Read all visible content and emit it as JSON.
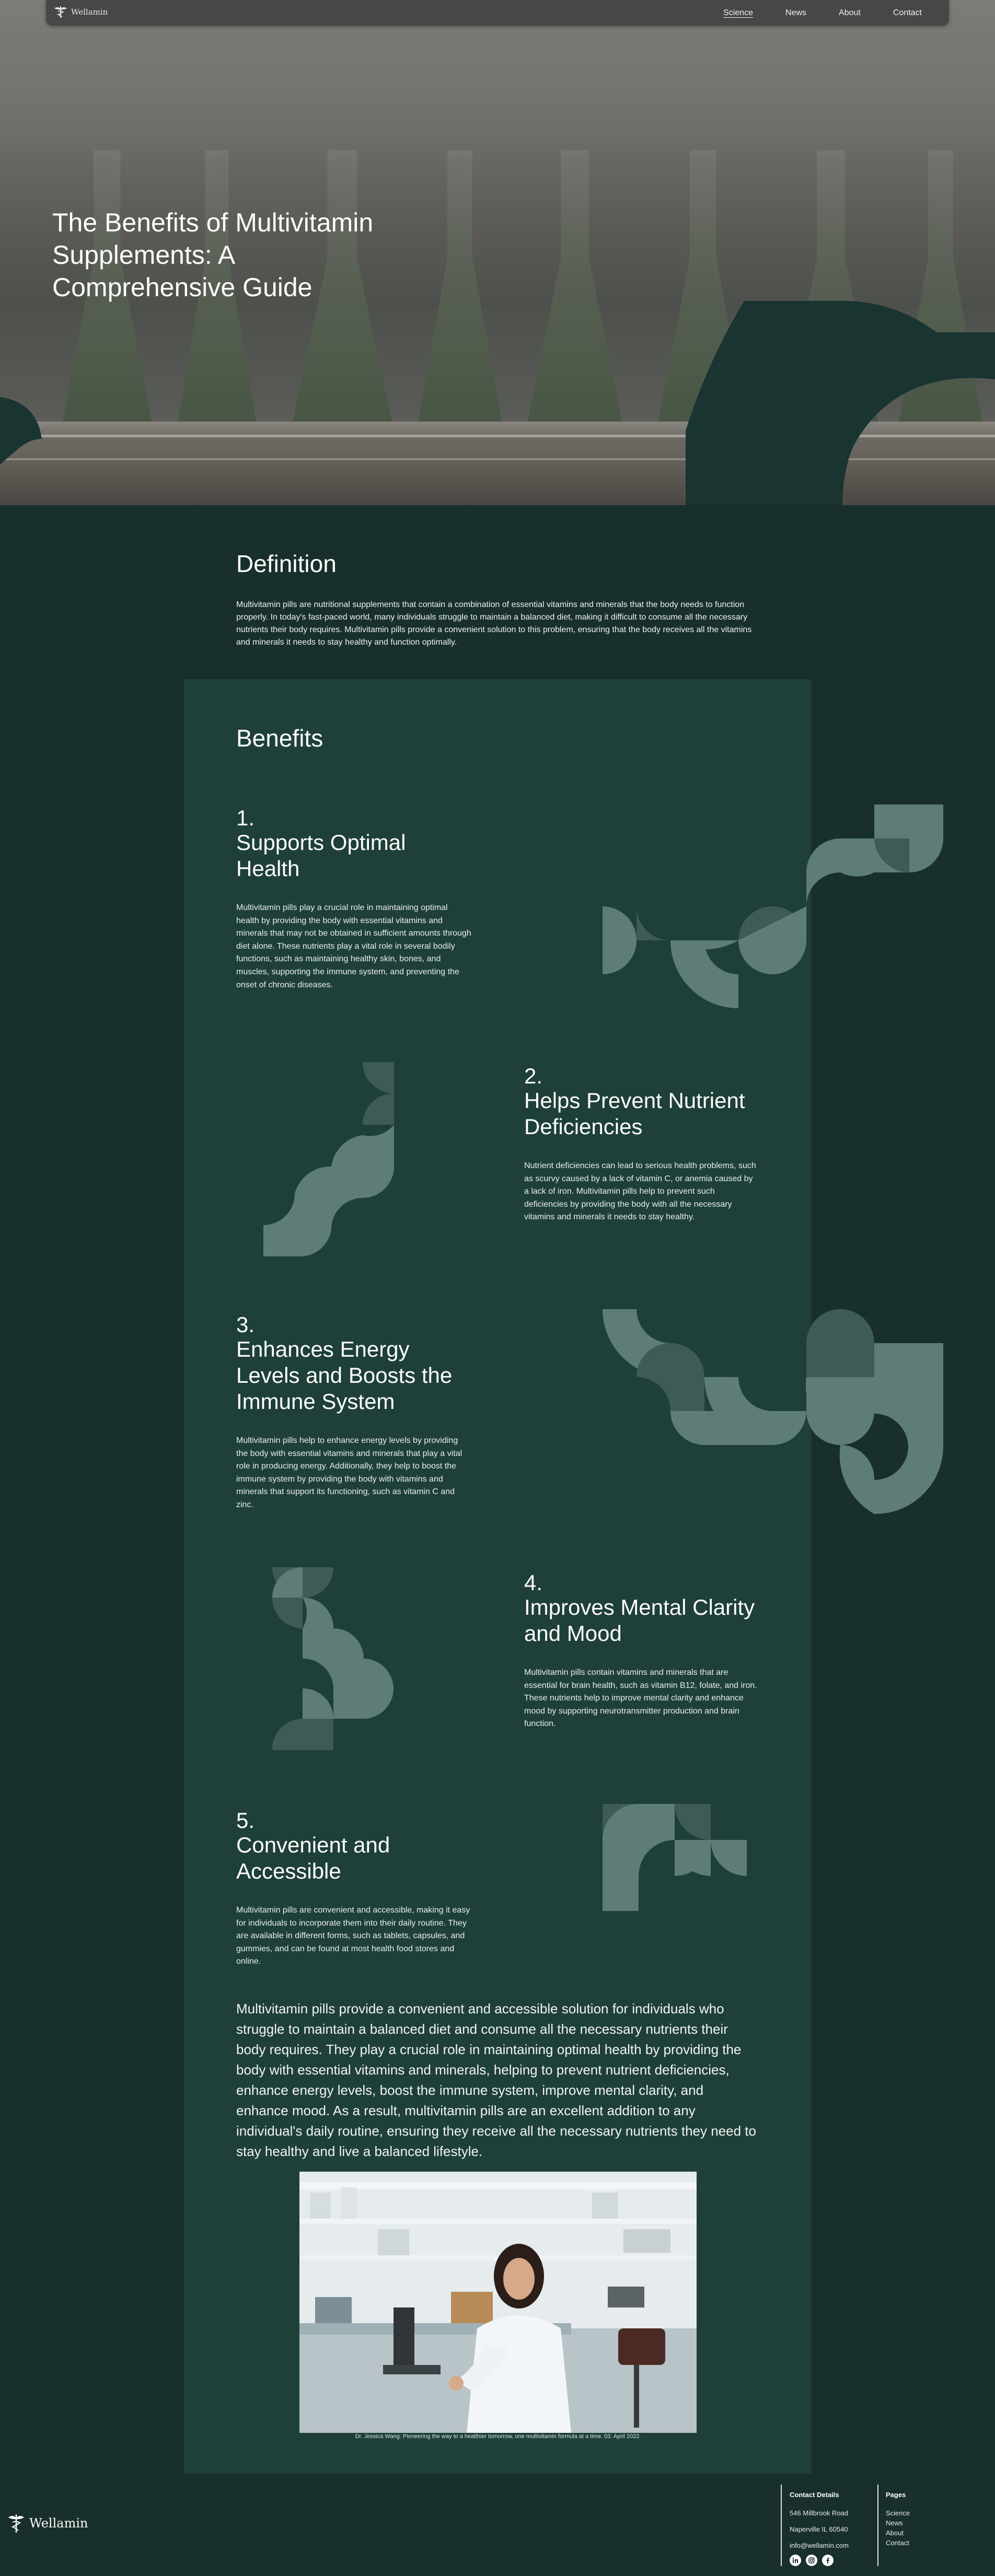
{
  "nav": {
    "brand": "Wellamin",
    "links": [
      "Science",
      "News",
      "About",
      "Contact"
    ],
    "active": "Science"
  },
  "hero": {
    "title": "The Benefits of Multivitamin Supplements: A Comprehensive Guide"
  },
  "definition": {
    "heading": "Definition",
    "body": "Multivitamin pills are nutritional supplements that contain a combination of essential vitamins and minerals that the body needs to function properly. In today's fast-paced world, many individuals struggle to maintain a balanced diet, making it difficult to consume all the necessary nutrients their body requires. Multivitamin pills provide a convenient solution to this problem, ensuring that the body receives all the vitamins and minerals it needs to stay healthy and function optimally."
  },
  "benefits": {
    "heading": "Benefits",
    "items": [
      {
        "number": "1.",
        "title": "Supports Optimal Health",
        "body": "Multivitamin pills play a crucial role in maintaining optimal health by providing the body with essential vitamins and minerals that may not be obtained in sufficient amounts through diet alone. These nutrients play a vital role in several bodily functions, such as maintaining healthy skin, bones, and muscles, supporting the immune system, and preventing the onset of chronic diseases."
      },
      {
        "number": "2.",
        "title": "Helps Prevent Nutrient Deficiencies",
        "body": "Nutrient deficiencies can lead to serious health problems, such as scurvy caused by a lack of vitamin C, or anemia caused by a lack of iron. Multivitamin pills help to prevent such deficiencies by providing the body with all the necessary vitamins and minerals it needs to stay healthy."
      },
      {
        "number": "3.",
        "title": "Enhances Energy Levels and Boosts the Immune System",
        "body": "Multivitamin pills help to enhance energy levels by providing the body with essential vitamins and minerals that play a vital role in producing energy. Additionally, they help to boost the immune system by providing the body with vitamins and minerals that support its functioning, such as vitamin C and zinc."
      },
      {
        "number": "4.",
        "title": "Improves Mental Clarity and Mood",
        "body": "Multivitamin pills contain vitamins and minerals that are essential for brain health, such as vitamin B12, folate, and iron. These nutrients help to improve mental clarity and enhance mood by supporting neurotransmitter production and brain function."
      },
      {
        "number": "5.",
        "title": "Convenient and Accessible",
        "body": "Multivitamin pills are convenient and accessible, making it easy for individuals to incorporate them into their daily routine. They are available in different forms, such as tablets, capsules, and gummies, and can be found at most health food stores and online."
      }
    ]
  },
  "summary": "Multivitamin pills provide a convenient and accessible solution for individuals who struggle to maintain a balanced diet and consume all the necessary nutrients their body requires. They play a crucial role in maintaining optimal health by providing the body with essential vitamins and minerals, helping to prevent nutrient deficiencies, enhance energy levels, boost the immune system, improve mental clarity, and enhance mood. As a result, multivitamin pills are an excellent addition to any individual's daily routine, ensuring they receive all the necessary nutrients they need to stay healthy and live a balanced lifestyle.",
  "photo": {
    "caption": "Dr. Jessica Wang: Pioneering the way to a healthier tomorrow, one multivitamin formula at a time. 03. April 2022."
  },
  "footer": {
    "brand": "Wellamin",
    "contact_heading": "Contact Details",
    "address_line1": "546 Millbrook Road",
    "address_line2": "Naperville IL 60540",
    "email": "info@wellamin.com",
    "pages_heading": "Pages",
    "pages": [
      "Science",
      "News",
      "About",
      "Contact"
    ],
    "social_icons": [
      "linkedin-icon",
      "instagram-icon",
      "facebook-icon"
    ]
  },
  "colors": {
    "page_bg": "#182f2b",
    "panel_bg": "#1e4039",
    "shape_light": "#5e7d78",
    "shape_dark": "#2d4843",
    "nav_bg": "#474746"
  }
}
